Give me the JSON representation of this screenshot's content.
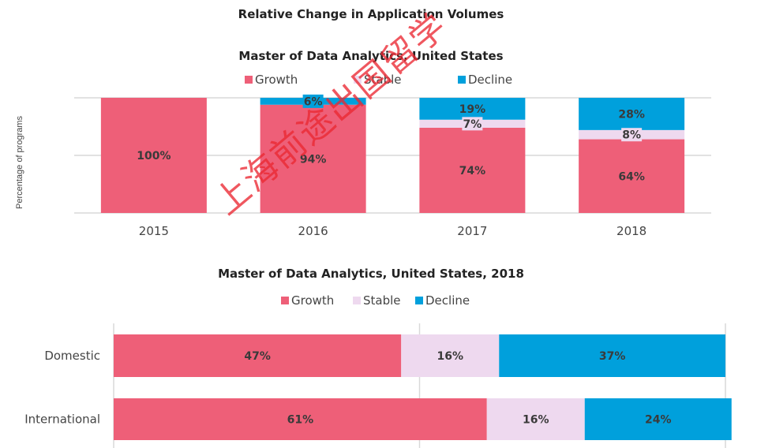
{
  "page_title": "Relative Change in Application Volumes",
  "colors": {
    "growth": "#EE5F78",
    "stable": "#EED9EF",
    "decline": "#00A0DC",
    "grid": "#D9D9D9",
    "label": "#3A3A3A"
  },
  "watermark": "上海前途出国留学",
  "chart_data": [
    {
      "type": "bar",
      "stacked": true,
      "orientation": "vertical",
      "title": "Master of Data Analytics, United States",
      "ylabel": "Percentage of programs",
      "xlabel": "",
      "ylim": [
        0,
        100
      ],
      "grid": true,
      "legend": {
        "placement": "top",
        "entries": [
          "Growth",
          "Stable",
          "Decline"
        ]
      },
      "categories": [
        "2015",
        "2016",
        "2017",
        "2018"
      ],
      "series": [
        {
          "name": "Growth",
          "values": [
            100,
            94,
            74,
            64
          ],
          "labels": [
            "100%",
            "94%",
            "74%",
            "64%"
          ]
        },
        {
          "name": "Stable",
          "values": [
            0,
            0,
            7,
            8
          ],
          "labels": [
            "",
            "",
            "7%",
            "8%"
          ]
        },
        {
          "name": "Decline",
          "values": [
            0,
            6,
            19,
            28
          ],
          "labels": [
            "",
            "6%",
            "19%",
            "28%"
          ]
        }
      ]
    },
    {
      "type": "bar",
      "stacked": true,
      "orientation": "horizontal",
      "title": "Master of Data Analytics, United States, 2018",
      "xlabel": "",
      "ylabel": "",
      "xlim": [
        0,
        100
      ],
      "grid": true,
      "legend": {
        "placement": "top",
        "entries": [
          "Growth",
          "Stable",
          "Decline"
        ]
      },
      "categories": [
        "Domestic",
        "International"
      ],
      "series": [
        {
          "name": "Growth",
          "values": [
            47,
            61
          ],
          "labels": [
            "47%",
            "61%"
          ]
        },
        {
          "name": "Stable",
          "values": [
            16,
            16
          ],
          "labels": [
            "16%",
            "16%"
          ]
        },
        {
          "name": "Decline",
          "values": [
            37,
            24
          ],
          "labels": [
            "37%",
            "24%"
          ]
        }
      ]
    }
  ]
}
